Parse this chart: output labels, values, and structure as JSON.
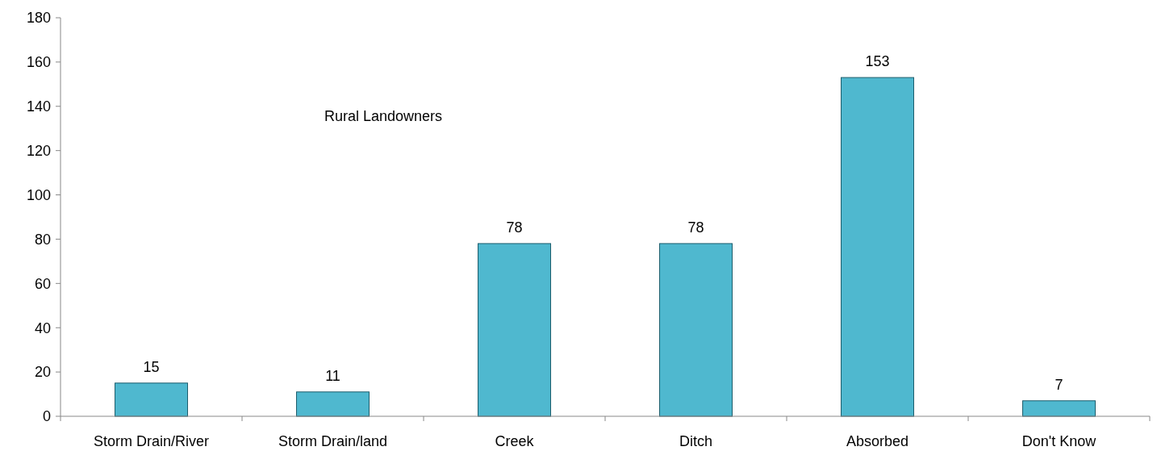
{
  "chart_data": {
    "type": "bar",
    "annotations": [
      "Rural Landowners"
    ],
    "categories": [
      "Storm Drain/River",
      "Storm Drain/land",
      "Creek",
      "Ditch",
      "Absorbed",
      "Don't Know"
    ],
    "values": [
      15,
      11,
      78,
      78,
      153,
      7
    ],
    "color": "#4fb8cf",
    "ylim": [
      0,
      180
    ],
    "yticks": [
      0,
      20,
      40,
      60,
      80,
      100,
      120,
      140,
      160,
      180
    ],
    "grid": false,
    "data_labels": true
  }
}
